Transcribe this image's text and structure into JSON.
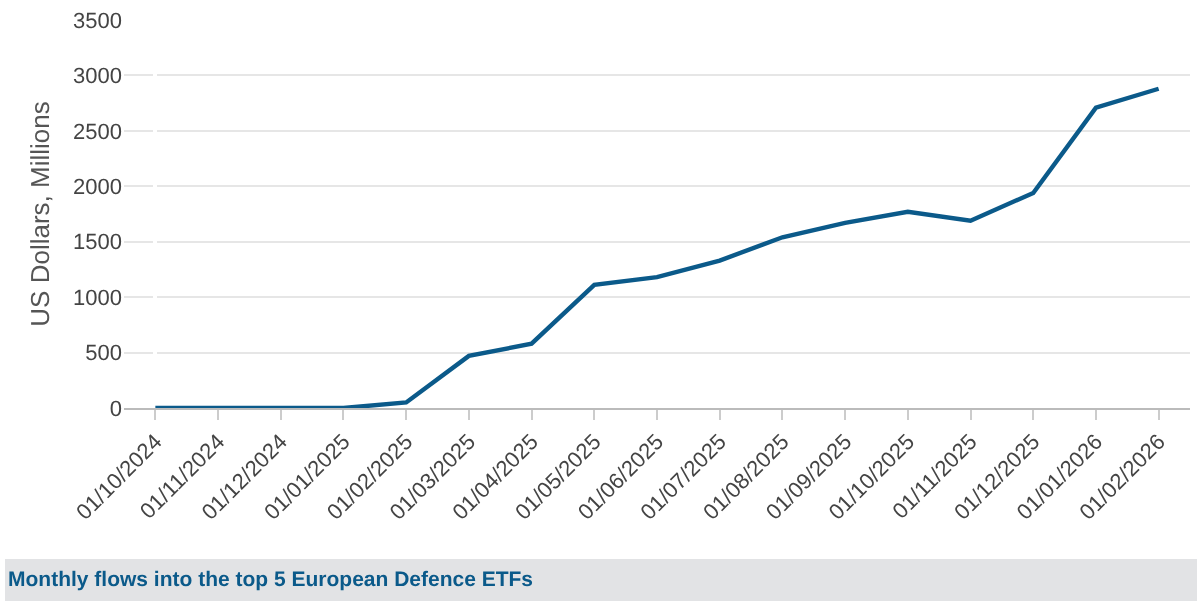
{
  "chart_data": {
    "type": "line",
    "title": "Monthly flows into the top 5 European Defence ETFs",
    "ylabel": "US Dollars, Millions",
    "categories": [
      "01/10/2024",
      "01/11/2024",
      "01/12/2024",
      "01/01/2025",
      "01/02/2025",
      "01/03/2025",
      "01/04/2025",
      "01/05/2025",
      "01/06/2025",
      "01/07/2025",
      "01/08/2025",
      "01/09/2025",
      "01/10/2025",
      "01/11/2025",
      "01/12/2025",
      "01/01/2026",
      "01/02/2026"
    ],
    "series": [
      {
        "color": "#0b5a8a",
        "values": [
          0,
          0,
          0,
          0,
          50,
          470,
          580,
          1110,
          1180,
          1330,
          1540,
          1670,
          1770,
          1690,
          1940,
          2710,
          2880
        ]
      }
    ],
    "ylim": [
      0,
      3500
    ],
    "yticks": [
      0,
      500,
      1000,
      1500,
      2000,
      2500,
      3000,
      3500
    ],
    "grid": "y"
  }
}
